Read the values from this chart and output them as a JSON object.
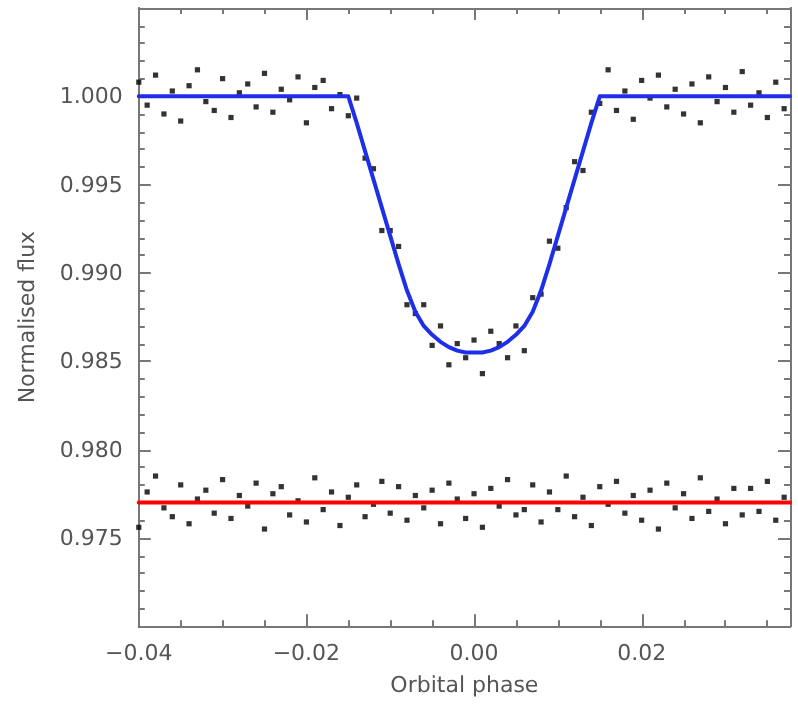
{
  "chart_data": {
    "type": "scatter",
    "xlabel": "Orbital phase",
    "ylabel": "Normalised flux",
    "xlim": [
      -0.04,
      0.0377
    ],
    "ylim": [
      0.97,
      1.005
    ],
    "xticks": [
      {
        "value": -0.04,
        "label": "−0.04"
      },
      {
        "value": -0.035,
        "label": null
      },
      {
        "value": -0.03,
        "label": null
      },
      {
        "value": -0.025,
        "label": null
      },
      {
        "value": -0.02,
        "label": "−0.02"
      },
      {
        "value": -0.015,
        "label": null
      },
      {
        "value": -0.01,
        "label": null
      },
      {
        "value": -0.005,
        "label": null
      },
      {
        "value": 0,
        "label": "0.00"
      },
      {
        "value": 0.005,
        "label": null
      },
      {
        "value": 0.01,
        "label": null
      },
      {
        "value": 0.015,
        "label": null
      },
      {
        "value": 0.02,
        "label": "0.02"
      },
      {
        "value": 0.025,
        "label": null
      },
      {
        "value": 0.03,
        "label": null
      },
      {
        "value": 0.035,
        "label": null
      }
    ],
    "yticks": [
      {
        "value": 0.971,
        "label": null
      },
      {
        "value": 0.972,
        "label": null
      },
      {
        "value": 0.973,
        "label": null
      },
      {
        "value": 0.974,
        "label": null
      },
      {
        "value": 0.975,
        "label": "0.975"
      },
      {
        "value": 0.976,
        "label": null
      },
      {
        "value": 0.977,
        "label": null
      },
      {
        "value": 0.978,
        "label": null
      },
      {
        "value": 0.979,
        "label": null
      },
      {
        "value": 0.98,
        "label": "0.980"
      },
      {
        "value": 0.981,
        "label": null
      },
      {
        "value": 0.982,
        "label": null
      },
      {
        "value": 0.983,
        "label": null
      },
      {
        "value": 0.984,
        "label": null
      },
      {
        "value": 0.985,
        "label": "0.985"
      },
      {
        "value": 0.986,
        "label": null
      },
      {
        "value": 0.987,
        "label": null
      },
      {
        "value": 0.988,
        "label": null
      },
      {
        "value": 0.989,
        "label": null
      },
      {
        "value": 0.99,
        "label": "0.990"
      },
      {
        "value": 0.991,
        "label": null
      },
      {
        "value": 0.992,
        "label": null
      },
      {
        "value": 0.993,
        "label": null
      },
      {
        "value": 0.994,
        "label": null
      },
      {
        "value": 0.995,
        "label": "0.995"
      },
      {
        "value": 0.996,
        "label": null
      },
      {
        "value": 0.997,
        "label": null
      },
      {
        "value": 0.998,
        "label": null
      },
      {
        "value": 0.999,
        "label": null
      },
      {
        "value": 1.0,
        "label": "1.000"
      },
      {
        "value": 1.001,
        "label": null
      },
      {
        "value": 1.002,
        "label": null
      },
      {
        "value": 1.003,
        "label": null
      },
      {
        "value": 1.004,
        "label": null
      }
    ],
    "grid": false,
    "marker": "square",
    "x": [
      -0.04,
      -0.039,
      -0.038,
      -0.037,
      -0.036,
      -0.035,
      -0.034,
      -0.033,
      -0.032,
      -0.031,
      -0.03,
      -0.029,
      -0.028,
      -0.027,
      -0.026,
      -0.025,
      -0.024,
      -0.023,
      -0.022,
      -0.021,
      -0.02,
      -0.019,
      -0.018,
      -0.017,
      -0.016,
      -0.015,
      -0.014,
      -0.013,
      -0.012,
      -0.011,
      -0.01,
      -0.009,
      -0.008,
      -0.007,
      -0.006,
      -0.005,
      -0.004,
      -0.003,
      -0.002,
      -0.001,
      0.0,
      0.001,
      0.002,
      0.003,
      0.004,
      0.005,
      0.006,
      0.007,
      0.008,
      0.009,
      0.01,
      0.011,
      0.012,
      0.013,
      0.014,
      0.015,
      0.016,
      0.017,
      0.018,
      0.019,
      0.02,
      0.021,
      0.022,
      0.023,
      0.024,
      0.025,
      0.026,
      0.027,
      0.028,
      0.029,
      0.03,
      0.031,
      0.032,
      0.033,
      0.034,
      0.035,
      0.036,
      0.037
    ],
    "series": [
      {
        "color": "#000000",
        "values": [
          1.0008,
          0.9995,
          1.0012,
          0.999,
          1.0003,
          0.9986,
          1.0006,
          1.0015,
          0.9997,
          0.9992,
          1.001,
          0.9988,
          1.0002,
          1.0007,
          0.9994,
          1.0013,
          0.9991,
          1.0004,
          0.9998,
          1.0011,
          0.9985,
          1.0005,
          1.0009,
          0.9993,
          1.0001,
          0.9989,
          0.9999,
          0.9965,
          0.9959,
          0.9924,
          0.9924,
          0.9915,
          0.9882,
          0.9877,
          0.9882,
          0.9859,
          0.987,
          0.9848,
          0.986,
          0.9852,
          0.9862,
          0.9843,
          0.9867,
          0.986,
          0.9852,
          0.987,
          0.9856,
          0.9886,
          0.9888,
          0.9918,
          0.9914,
          0.9937,
          0.9963,
          0.9958,
          0.9991,
          0.9996,
          1.0015,
          0.9992,
          1.0003,
          0.9987,
          1.0009,
          0.9999,
          1.0012,
          0.9994,
          1.0004,
          0.999,
          1.0007,
          0.9985,
          1.0011,
          0.9997,
          1.0005,
          0.9991,
          1.0014,
          0.9995,
          1.0002,
          0.9988,
          1.0008,
          0.9993
        ]
      },
      {
        "color": "#000000",
        "values": [
          0.9756,
          0.9776,
          0.9785,
          0.9767,
          0.9762,
          0.978,
          0.9758,
          0.9772,
          0.9777,
          0.9764,
          0.9783,
          0.9761,
          0.9774,
          0.9768,
          0.9781,
          0.9755,
          0.9775,
          0.9779,
          0.9763,
          0.9771,
          0.9759,
          0.9784,
          0.9766,
          0.9776,
          0.9757,
          0.9773,
          0.978,
          0.9762,
          0.9769,
          0.9782,
          0.9764,
          0.9779,
          0.976,
          0.9774,
          0.9767,
          0.9777,
          0.9758,
          0.9781,
          0.9772,
          0.9761,
          0.9775,
          0.9756,
          0.9778,
          0.9768,
          0.9783,
          0.9763,
          0.9766,
          0.978,
          0.9759,
          0.9776,
          0.9766,
          0.9785,
          0.9762,
          0.9773,
          0.9757,
          0.9779,
          0.9769,
          0.9782,
          0.9764,
          0.9774,
          0.976,
          0.9777,
          0.9755,
          0.9781,
          0.9767,
          0.9775,
          0.9761,
          0.9784,
          0.9765,
          0.9772,
          0.9758,
          0.9778,
          0.9763,
          0.9778,
          0.9765,
          0.9782,
          0.976,
          0.9773
        ]
      },
      {
        "type": "line",
        "color": "#1f2ee8",
        "marker": "none",
        "line_style": "solid",
        "x": [
          -0.04,
          -0.015,
          -0.014,
          -0.013,
          -0.012,
          -0.011,
          -0.01,
          -0.009,
          -0.008,
          -0.007,
          -0.006,
          -0.005,
          -0.004,
          -0.003,
          -0.002,
          -0.001,
          0,
          0.001,
          0.002,
          0.003,
          0.004,
          0.005,
          0.006,
          0.007,
          0.008,
          0.009,
          0.01,
          0.011,
          0.012,
          0.013,
          0.014,
          0.015,
          0.0377
        ],
        "values": [
          1.0,
          1.0,
          0.9985,
          0.9969,
          0.9953,
          0.9937,
          0.9921,
          0.9905,
          0.989,
          0.9878,
          0.987,
          0.9865,
          0.9861,
          0.9858,
          0.9856,
          0.9855,
          0.9855,
          0.9855,
          0.9856,
          0.9858,
          0.9861,
          0.9865,
          0.987,
          0.9878,
          0.989,
          0.9905,
          0.9921,
          0.9937,
          0.9953,
          0.9969,
          0.9985,
          1.0,
          1.0
        ]
      },
      {
        "type": "line",
        "color": "#ff0000",
        "marker": "none",
        "line_style": "solid",
        "x": [
          -0.04,
          0.0377
        ],
        "values": [
          0.977,
          0.977
        ]
      }
    ]
  }
}
